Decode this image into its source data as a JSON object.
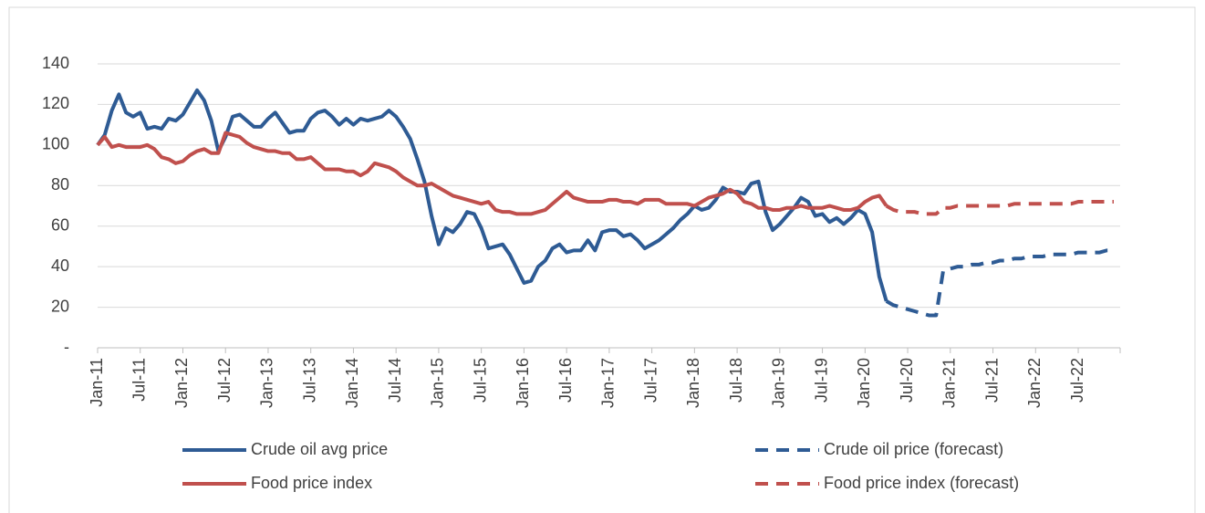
{
  "chart_data": {
    "type": "line",
    "categories": [
      "Jan-11",
      null,
      null,
      null,
      null,
      null,
      "Jul-11",
      null,
      null,
      null,
      null,
      null,
      "Jan-12",
      null,
      null,
      null,
      null,
      null,
      "Jul-12",
      null,
      null,
      null,
      null,
      null,
      "Jan-13",
      null,
      null,
      null,
      null,
      null,
      "Jul-13",
      null,
      null,
      null,
      null,
      null,
      "Jan-14",
      null,
      null,
      null,
      null,
      null,
      "Jul-14",
      null,
      null,
      null,
      null,
      null,
      "Jan-15",
      null,
      null,
      null,
      null,
      null,
      "Jul-15",
      null,
      null,
      null,
      null,
      null,
      "Jan-16",
      null,
      null,
      null,
      null,
      null,
      "Jul-16",
      null,
      null,
      null,
      null,
      null,
      "Jan-17",
      null,
      null,
      null,
      null,
      null,
      "Jul-17",
      null,
      null,
      null,
      null,
      null,
      "Jan-18",
      null,
      null,
      null,
      null,
      null,
      "Jul-18",
      null,
      null,
      null,
      null,
      null,
      "Jan-19",
      null,
      null,
      null,
      null,
      null,
      "Jul-19",
      null,
      null,
      null,
      null,
      null,
      "Jan-20",
      null,
      null,
      null,
      null,
      null,
      "Jul-20",
      null,
      null,
      null,
      null,
      null,
      "Jan-21",
      null,
      null,
      null,
      null,
      null,
      "Jul-21",
      null,
      null,
      null,
      null,
      null,
      "Jan-22",
      null,
      null,
      null,
      null,
      null,
      "Jul-22",
      null,
      null,
      null,
      null,
      null
    ],
    "series": [
      {
        "name": "Crude oil avg price",
        "color": "#2e5b94",
        "dashed": false,
        "values": [
          100,
          105,
          117,
          125,
          116,
          114,
          116,
          108,
          109,
          108,
          113,
          112,
          115,
          121,
          127,
          122,
          112,
          97,
          104,
          114,
          115,
          112,
          109,
          109,
          113,
          116,
          111,
          106,
          107,
          107,
          113,
          116,
          117,
          114,
          110,
          113,
          110,
          113,
          112,
          113,
          114,
          117,
          114,
          109,
          103,
          93,
          82,
          65,
          51,
          59,
          57,
          61,
          67,
          66,
          59,
          49,
          50,
          51,
          46,
          39,
          32,
          33,
          40,
          43,
          49,
          51,
          47,
          48,
          48,
          53,
          48,
          57,
          58,
          58,
          55,
          56,
          53,
          49,
          51,
          53,
          56,
          59,
          63,
          66,
          70,
          68,
          69,
          73,
          79,
          77,
          77,
          76,
          81,
          82,
          67,
          58,
          61,
          65,
          69,
          74,
          72,
          65,
          66,
          62,
          64,
          61,
          64,
          68,
          66,
          57,
          35,
          23,
          null,
          null,
          null,
          null,
          null,
          null,
          null,
          null,
          null,
          null,
          null,
          null,
          null,
          null,
          null,
          null,
          null,
          null,
          null,
          null,
          null,
          null,
          null,
          null,
          null,
          null,
          null,
          null,
          null,
          null,
          null,
          null
        ]
      },
      {
        "name": "Crude oil price (forecast)",
        "color": "#2e5b94",
        "dashed": true,
        "values": [
          null,
          null,
          null,
          null,
          null,
          null,
          null,
          null,
          null,
          null,
          null,
          null,
          null,
          null,
          null,
          null,
          null,
          null,
          null,
          null,
          null,
          null,
          null,
          null,
          null,
          null,
          null,
          null,
          null,
          null,
          null,
          null,
          null,
          null,
          null,
          null,
          null,
          null,
          null,
          null,
          null,
          null,
          null,
          null,
          null,
          null,
          null,
          null,
          null,
          null,
          null,
          null,
          null,
          null,
          null,
          null,
          null,
          null,
          null,
          null,
          null,
          null,
          null,
          null,
          null,
          null,
          null,
          null,
          null,
          null,
          null,
          null,
          null,
          null,
          null,
          null,
          null,
          null,
          null,
          null,
          null,
          null,
          null,
          null,
          null,
          null,
          null,
          null,
          null,
          null,
          null,
          null,
          null,
          null,
          null,
          null,
          null,
          null,
          null,
          null,
          null,
          null,
          null,
          null,
          null,
          null,
          null,
          null,
          null,
          null,
          null,
          23,
          21,
          20,
          19,
          18,
          17,
          16,
          16,
          38,
          39,
          40,
          40,
          41,
          41,
          42,
          42,
          43,
          43,
          44,
          44,
          45,
          45,
          45,
          46,
          46,
          46,
          46,
          47,
          47,
          47,
          47,
          48,
          48
        ]
      },
      {
        "name": "Food price index",
        "color": "#c0504d",
        "dashed": false,
        "values": [
          100,
          104,
          99,
          100,
          99,
          99,
          99,
          100,
          98,
          94,
          93,
          91,
          92,
          95,
          97,
          98,
          96,
          96,
          106,
          105,
          104,
          101,
          99,
          98,
          97,
          97,
          96,
          96,
          93,
          93,
          94,
          91,
          88,
          88,
          88,
          87,
          87,
          85,
          87,
          91,
          90,
          89,
          87,
          84,
          82,
          80,
          80,
          81,
          79,
          77,
          75,
          74,
          73,
          72,
          71,
          72,
          68,
          67,
          67,
          66,
          66,
          66,
          67,
          68,
          71,
          74,
          77,
          74,
          73,
          72,
          72,
          72,
          73,
          73,
          72,
          72,
          71,
          73,
          73,
          73,
          71,
          71,
          71,
          71,
          70,
          72,
          74,
          75,
          76,
          78,
          76,
          72,
          71,
          69,
          69,
          68,
          68,
          69,
          69,
          70,
          69,
          69,
          69,
          70,
          69,
          68,
          68,
          69,
          72,
          74,
          75,
          70,
          null,
          null,
          null,
          null,
          null,
          null,
          null,
          null,
          null,
          null,
          null,
          null,
          null,
          null,
          null,
          null,
          null,
          null,
          null,
          null,
          null,
          null,
          null,
          null,
          null,
          null,
          null,
          null,
          null,
          null,
          null,
          null
        ]
      },
      {
        "name": "Food price index (forecast)",
        "color": "#c0504d",
        "dashed": true,
        "values": [
          null,
          null,
          null,
          null,
          null,
          null,
          null,
          null,
          null,
          null,
          null,
          null,
          null,
          null,
          null,
          null,
          null,
          null,
          null,
          null,
          null,
          null,
          null,
          null,
          null,
          null,
          null,
          null,
          null,
          null,
          null,
          null,
          null,
          null,
          null,
          null,
          null,
          null,
          null,
          null,
          null,
          null,
          null,
          null,
          null,
          null,
          null,
          null,
          null,
          null,
          null,
          null,
          null,
          null,
          null,
          null,
          null,
          null,
          null,
          null,
          null,
          null,
          null,
          null,
          null,
          null,
          null,
          null,
          null,
          null,
          null,
          null,
          null,
          null,
          null,
          null,
          null,
          null,
          null,
          null,
          null,
          null,
          null,
          null,
          null,
          null,
          null,
          null,
          null,
          null,
          null,
          null,
          null,
          null,
          null,
          null,
          null,
          null,
          null,
          null,
          null,
          null,
          null,
          null,
          null,
          null,
          null,
          null,
          null,
          null,
          null,
          70,
          68,
          67,
          67,
          67,
          66,
          66,
          66,
          69,
          69,
          70,
          70,
          70,
          70,
          70,
          70,
          70,
          70,
          71,
          71,
          71,
          71,
          71,
          71,
          71,
          71,
          71,
          72,
          72,
          72,
          72,
          72,
          72
        ]
      }
    ],
    "ylim": [
      0,
      140
    ],
    "yticks": [
      {
        "value": 0,
        "label": "-"
      },
      20,
      40,
      60,
      80,
      100,
      120,
      140
    ],
    "grid": true,
    "legend": "bottom"
  }
}
